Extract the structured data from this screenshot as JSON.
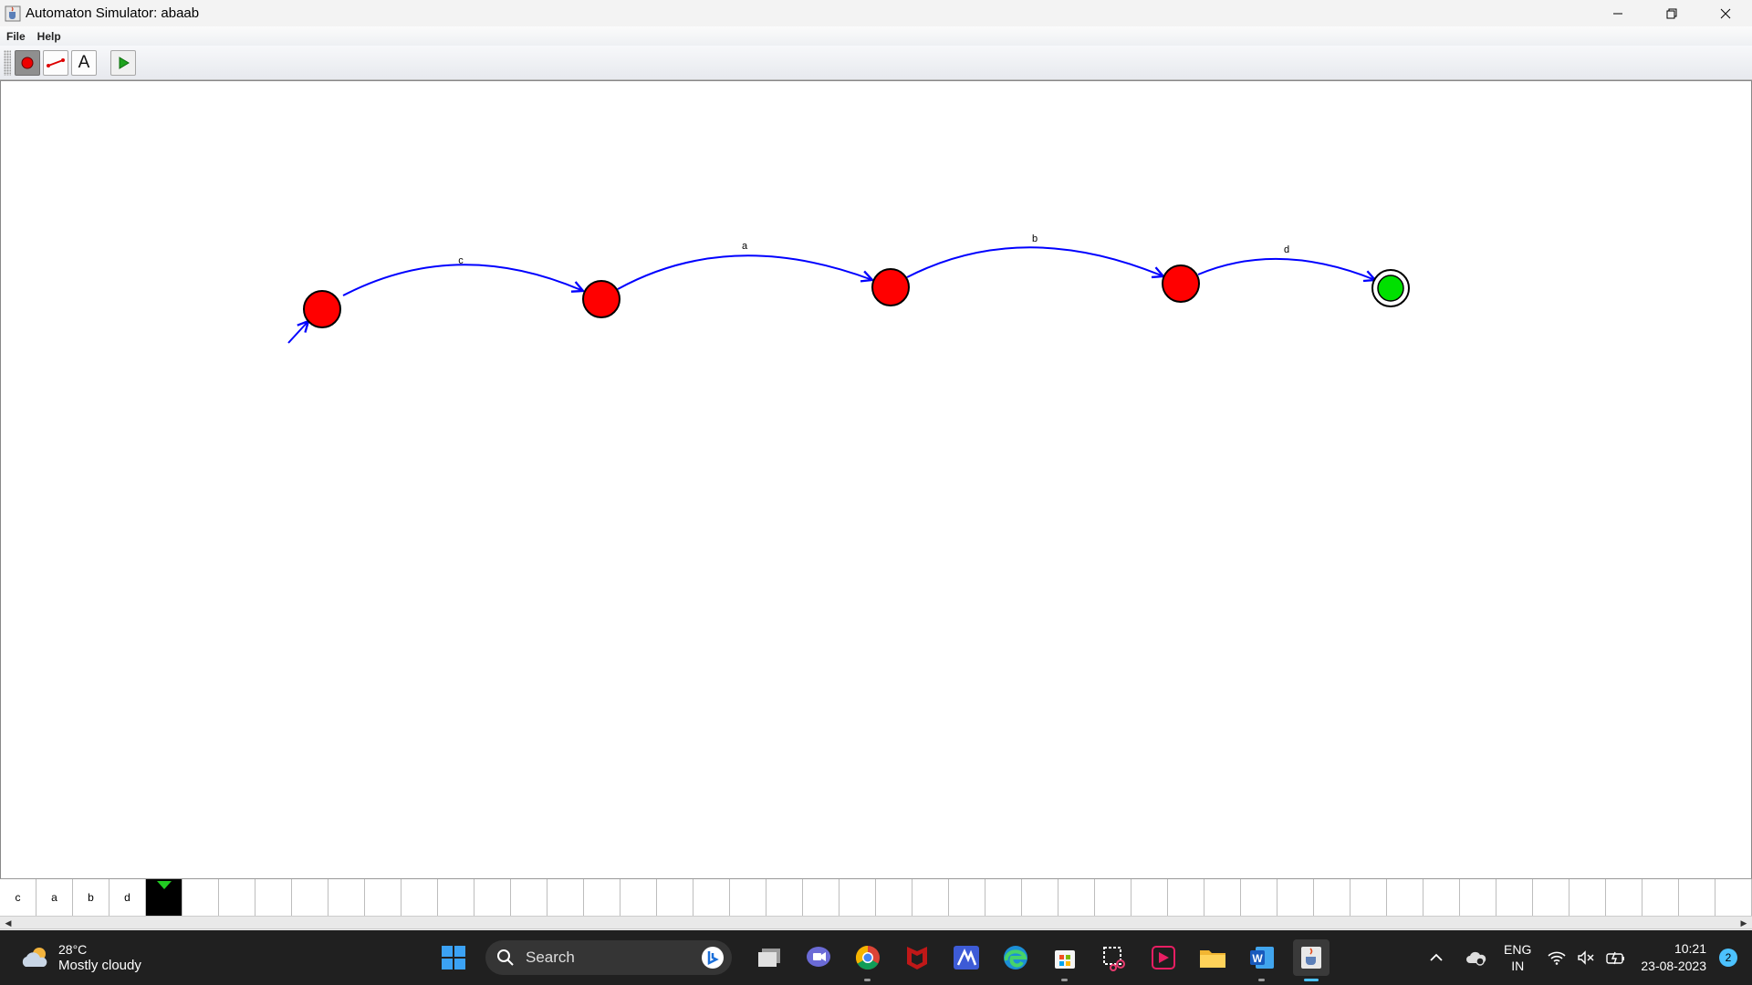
{
  "window": {
    "title": "Automaton Simulator: abaab",
    "icon": "java-cup-icon"
  },
  "window_controls": {
    "minimize_icon": "minimize-icon",
    "restore_icon": "restore-icon",
    "close_icon": "close-icon"
  },
  "menu": {
    "items": [
      "File",
      "Help"
    ]
  },
  "toolbar": {
    "tools": [
      {
        "name": "state-tool",
        "icon": "red-dot-icon",
        "selected": true
      },
      {
        "name": "transition-tool",
        "icon": "transition-line-icon",
        "selected": false
      },
      {
        "name": "text-tool",
        "icon": "letter-a-icon",
        "glyph": "A",
        "selected": false
      }
    ],
    "run_icon": "play-icon"
  },
  "automaton": {
    "states": [
      {
        "id": "s0",
        "initial": true,
        "accepting": false,
        "color": "#ff0000"
      },
      {
        "id": "s1",
        "initial": false,
        "accepting": false,
        "color": "#ff0000"
      },
      {
        "id": "s2",
        "initial": false,
        "accepting": false,
        "color": "#ff0000"
      },
      {
        "id": "s3",
        "initial": false,
        "accepting": false,
        "color": "#ff0000"
      },
      {
        "id": "s4",
        "initial": false,
        "accepting": true,
        "color": "#00e000"
      }
    ],
    "transitions": [
      {
        "from": "s0",
        "to": "s1",
        "label": "c"
      },
      {
        "from": "s1",
        "to": "s2",
        "label": "a"
      },
      {
        "from": "s2",
        "to": "s3",
        "label": "b"
      },
      {
        "from": "s3",
        "to": "s4",
        "label": "d"
      }
    ],
    "transition_color": "#0000ff"
  },
  "tape": {
    "cells": [
      "c",
      "a",
      "b",
      "d"
    ],
    "head_index": 4,
    "head_color": "#22cc22"
  },
  "taskbar": {
    "weather": {
      "temp": "28°C",
      "condition": "Mostly cloudy",
      "icon": "cloud-sun-icon"
    },
    "search_label": "Search",
    "apps": [
      "windows-start-icon",
      "task-view-icon",
      "teams-chat-icon",
      "chrome-icon",
      "mcafee-icon",
      "app-icon",
      "edge-icon",
      "store-icon",
      "snipping-tool-icon",
      "media-app-icon",
      "file-explorer-icon",
      "word-icon",
      "java-icon"
    ],
    "tray": {
      "lang_line1": "ENG",
      "lang_line2": "IN",
      "time": "10:21",
      "date": "23-08-2023",
      "notification_count": "2"
    }
  }
}
